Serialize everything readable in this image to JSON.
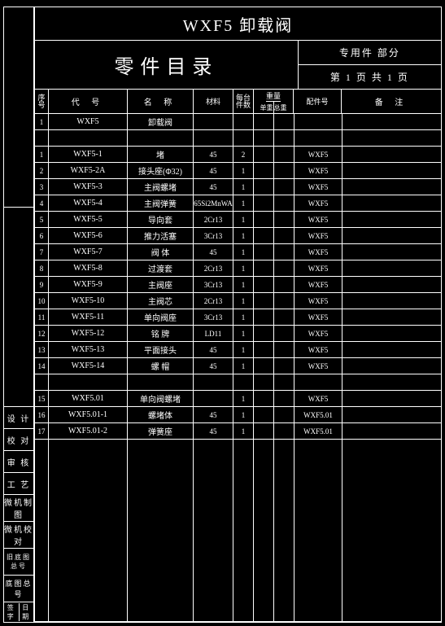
{
  "title": "WXF5 卸载阀",
  "catalog": "零件目录",
  "section": "专用件 部分",
  "page": "第 1 页 共 1 页",
  "leftLabels": [
    "设    计",
    "校    对",
    "审    核",
    "工    艺",
    "微机制图",
    "微机校对",
    "旧底图总号",
    "底图总号"
  ],
  "leftFooter": [
    "签字",
    "日期"
  ],
  "headers": {
    "seq": "序号",
    "code": "代    号",
    "name": "名    称",
    "mat": "材料",
    "qty": "每台件数",
    "wt": "重量",
    "wta": "单重",
    "wtb": "总重",
    "pn": "配件号",
    "rmk": "备    注"
  },
  "rows": [
    {
      "seq": "1",
      "code": "WXF5",
      "name": "卸载阀",
      "mat": "",
      "qty": "",
      "pn": ""
    },
    {
      "seq": "",
      "code": "",
      "name": "",
      "mat": "",
      "qty": "",
      "pn": ""
    },
    {
      "seq": "1",
      "code": "WXF5-1",
      "name": "堵",
      "mat": "45",
      "qty": "2",
      "pn": "WXF5"
    },
    {
      "seq": "2",
      "code": "WXF5-2A",
      "name": "接头座(Φ32)",
      "mat": "45",
      "qty": "1",
      "pn": "WXF5"
    },
    {
      "seq": "3",
      "code": "WXF5-3",
      "name": "主阀螺堵",
      "mat": "45",
      "qty": "1",
      "pn": "WXF5"
    },
    {
      "seq": "4",
      "code": "WXF5-4",
      "name": "主阀弹簧",
      "mat": "65Si2MnWA",
      "qty": "1",
      "pn": "WXF5"
    },
    {
      "seq": "5",
      "code": "WXF5-5",
      "name": "导向套",
      "mat": "2Cr13",
      "qty": "1",
      "pn": "WXF5"
    },
    {
      "seq": "6",
      "code": "WXF5-6",
      "name": "推力活塞",
      "mat": "3Cr13",
      "qty": "1",
      "pn": "WXF5"
    },
    {
      "seq": "7",
      "code": "WXF5-7",
      "name": "阀    体",
      "mat": "45",
      "qty": "1",
      "pn": "WXF5"
    },
    {
      "seq": "8",
      "code": "WXF5-8",
      "name": "过渡套",
      "mat": "2Cr13",
      "qty": "1",
      "pn": "WXF5"
    },
    {
      "seq": "9",
      "code": "WXF5-9",
      "name": "主阀座",
      "mat": "3Cr13",
      "qty": "1",
      "pn": "WXF5"
    },
    {
      "seq": "10",
      "code": "WXF5-10",
      "name": "主阀芯",
      "mat": "2Cr13",
      "qty": "1",
      "pn": "WXF5"
    },
    {
      "seq": "11",
      "code": "WXF5-11",
      "name": "单向阀座",
      "mat": "3Cr13",
      "qty": "1",
      "pn": "WXF5"
    },
    {
      "seq": "12",
      "code": "WXF5-12",
      "name": "铭    牌",
      "mat": "LD11",
      "qty": "1",
      "pn": "WXF5"
    },
    {
      "seq": "13",
      "code": "WXF5-13",
      "name": "平面接头",
      "mat": "45",
      "qty": "1",
      "pn": "WXF5"
    },
    {
      "seq": "14",
      "code": "WXF5-14",
      "name": "螺    帽",
      "mat": "45",
      "qty": "1",
      "pn": "WXF5"
    },
    {
      "seq": "",
      "code": "",
      "name": "",
      "mat": "",
      "qty": "",
      "pn": ""
    },
    {
      "seq": "15",
      "code": "WXF5.01",
      "name": "单向阀螺堵",
      "mat": "",
      "qty": "1",
      "pn": "WXF5"
    },
    {
      "seq": "16",
      "code": "WXF5.01-1",
      "name": "螺堵体",
      "mat": "45",
      "qty": "1",
      "pn": "WXF5.01"
    },
    {
      "seq": "17",
      "code": "WXF5.01-2",
      "name": "弹簧座",
      "mat": "45",
      "qty": "1",
      "pn": "WXF5.01"
    }
  ],
  "colors": {
    "bg": "#000000",
    "line": "#ffffff",
    "text": "#ffffff"
  }
}
